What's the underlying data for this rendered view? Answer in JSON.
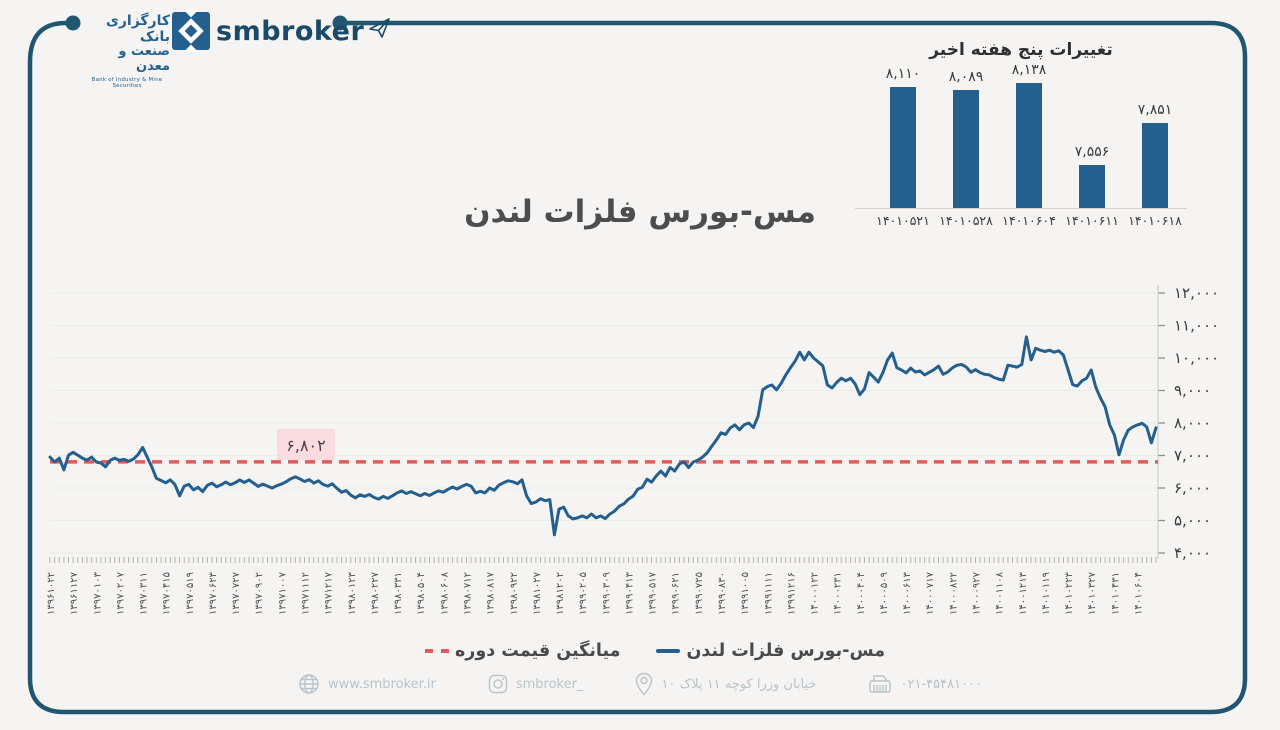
{
  "header": {
    "brand": "smbroker",
    "logo_fa_1": "کارگزاری بانک",
    "logo_fa_2": "صنعت و معدن",
    "logo_en": "Bank of Industry & Mine Securities"
  },
  "main_title": "مس-بورس فلزات لندن",
  "colors": {
    "accent_blue": "#245f8e",
    "frame_blue": "#20566f",
    "dash_red": "#e05b5b",
    "annotation_bg": "#fadbdf",
    "background": "#f5f4f2",
    "muted_footer": "#b9c3ca"
  },
  "legend": {
    "items": [
      {
        "label": "مس-بورس فلزات لندن",
        "marker": "solid-blue-line"
      },
      {
        "label": "میانگین قیمت دوره",
        "marker": "red-dashed-line"
      }
    ]
  },
  "footer": {
    "website": {
      "icon": "globe-icon",
      "label": "www.smbroker.ir"
    },
    "instagram": {
      "icon": "instagram-icon",
      "label": "smbroker_"
    },
    "address": {
      "icon": "location-pin-icon",
      "label": "خیابان وزرا کوچه ۱۱ پلاک ۱۰"
    },
    "phone": {
      "icon": "fax-icon",
      "label": "۰۲۱-۴۵۴۸۱۰۰۰"
    }
  },
  "chart_data": [
    {
      "type": "bar",
      "title": "تغییرات پنج هفته اخیر",
      "categories": [
        "۱۴۰۱۰۵۲۱",
        "۱۴۰۱۰۵۲۸",
        "۱۴۰۱۰۶۰۴",
        "۱۴۰۱۰۶۱۱",
        "۱۴۰۱۰۶۱۸"
      ],
      "values": [
        8110,
        8089,
        8138,
        7556,
        7851
      ],
      "value_labels": [
        "۸,۱۱۰",
        "۸,۰۸۹",
        "۸,۱۳۸",
        "۷,۵۵۶",
        "۷,۸۵۱"
      ],
      "bar_color": "#245f8e",
      "baseline_visible": true
    },
    {
      "type": "line",
      "name": "مس-بورس فلزات لندن",
      "line_color": "#245f8e",
      "ylim": [
        4000,
        12000
      ],
      "yticks": {
        "values": [
          12000,
          11000,
          10000,
          9000,
          8000,
          7000,
          6000,
          5000,
          4000
        ],
        "labels": [
          "۱۲,۰۰۰",
          "۱۱,۰۰۰",
          "۱۰,۰۰۰",
          "۹,۰۰۰",
          "۸,۰۰۰",
          "۷,۰۰۰",
          "۶,۰۰۰",
          "۵,۰۰۰",
          "۴,۰۰۰"
        ]
      },
      "x_tick_every": 5,
      "x_tick_labels": [
        "۱۳۹۶۱۰۲۲",
        "۱۳۹۶۱۱۲۷",
        "۱۳۹۷۰۱۰۳",
        "۱۳۹۷۰۲۰۷",
        "۱۳۹۷۰۳۱۱",
        "۱۳۹۷۰۴۱۵",
        "۱۳۹۷۰۵۱۹",
        "۱۳۹۷۰۶۲۳",
        "۱۳۹۷۰۷۲۷",
        "۱۳۹۷۰۹۰۲",
        "۱۳۹۷۱۰۰۷",
        "۱۳۹۷۱۱۱۲",
        "۱۳۹۷۱۲۱۷",
        "۱۳۹۸۰۱۲۳",
        "۱۳۹۸۰۲۲۷",
        "۱۳۹۸۰۳۳۱",
        "۱۳۹۸۰۵۰۴",
        "۱۳۹۸۰۶۰۸",
        "۱۳۹۸۰۷۱۲",
        "۱۳۹۸۰۸۱۷",
        "۱۳۹۸۰۹۲۲",
        "۱۳۹۸۱۰۲۷",
        "۱۳۹۸۱۲۰۲",
        "۱۳۹۹۰۲۰۵",
        "۱۳۹۹۰۳۰۹",
        "۱۳۹۹۰۴۱۳",
        "۱۳۹۹۰۵۱۷",
        "۱۳۹۹۰۶۲۱",
        "۱۳۹۹۰۷۲۵",
        "۱۳۹۹۰۸۳۰",
        "۱۳۹۹۱۰۰۵",
        "۱۳۹۹۱۱۱۱",
        "۱۳۹۹۱۲۱۶",
        "۱۴۰۰۰۱۲۲",
        "۱۴۰۰۰۲۳۱",
        "۱۴۰۰۰۴۰۴",
        "۱۴۰۰۰۵۰۹",
        "۱۴۰۰۰۶۱۳",
        "۱۴۰۰۰۷۱۷",
        "۱۴۰۰۰۸۲۲",
        "۱۴۰۰۰۹۲۷",
        "۱۴۰۰۱۱۰۸",
        "۱۴۰۰۱۲۱۳",
        "۱۴۰۱۰۱۱۹",
        "۱۴۰۱۰۲۲۳",
        "۱۴۰۱۰۳۲۷",
        "۱۴۰۱۰۴۳۱",
        "۱۴۰۱۰۶۰۴"
      ],
      "series": [
        6950,
        6800,
        6920,
        6560,
        7010,
        7100,
        7010,
        6920,
        6860,
        6950,
        6800,
        6770,
        6650,
        6850,
        6920,
        6850,
        6880,
        6820,
        6890,
        7020,
        7250,
        6950,
        6650,
        6300,
        6230,
        6160,
        6250,
        6110,
        5760,
        6060,
        6110,
        5940,
        6020,
        5890,
        6080,
        6150,
        6040,
        6100,
        6180,
        6100,
        6160,
        6250,
        6170,
        6250,
        6150,
        6050,
        6120,
        6060,
        6000,
        6070,
        6120,
        6190,
        6280,
        6340,
        6280,
        6200,
        6260,
        6150,
        6220,
        6110,
        6060,
        6130,
        5990,
        5870,
        5920,
        5780,
        5700,
        5790,
        5740,
        5800,
        5710,
        5660,
        5740,
        5680,
        5760,
        5850,
        5910,
        5830,
        5890,
        5820,
        5760,
        5830,
        5770,
        5850,
        5910,
        5870,
        5960,
        6030,
        5970,
        6050,
        6110,
        6060,
        5850,
        5900,
        5850,
        6000,
        5930,
        6090,
        6160,
        6220,
        6190,
        6130,
        6250,
        5760,
        5520,
        5570,
        5670,
        5610,
        5640,
        4560,
        5350,
        5410,
        5140,
        5050,
        5080,
        5140,
        5080,
        5200,
        5080,
        5140,
        5060,
        5200,
        5290,
        5440,
        5510,
        5660,
        5750,
        5960,
        6020,
        6270,
        6180,
        6370,
        6520,
        6370,
        6630,
        6520,
        6740,
        6800,
        6630,
        6800,
        6860,
        6950,
        7080,
        7280,
        7480,
        7700,
        7650,
        7850,
        7940,
        7790,
        7940,
        8000,
        7860,
        8200,
        9020,
        9120,
        9170,
        9020,
        9220,
        9480,
        9700,
        9900,
        10180,
        9940,
        10180,
        10000,
        9880,
        9760,
        9170,
        9080,
        9250,
        9380,
        9300,
        9380,
        9200,
        8870,
        9050,
        9550,
        9410,
        9260,
        9560,
        9940,
        10150,
        9700,
        9630,
        9540,
        9690,
        9570,
        9600,
        9480,
        9560,
        9640,
        9750,
        9500,
        9570,
        9700,
        9780,
        9800,
        9720,
        9560,
        9640,
        9550,
        9500,
        9480,
        9400,
        9350,
        9320,
        9780,
        9750,
        9720,
        9800,
        10650,
        9940,
        10300,
        10240,
        10200,
        10240,
        10180,
        10220,
        10090,
        9630,
        9180,
        9140,
        9300,
        9380,
        9630,
        9100,
        8770,
        8500,
        7940,
        7630,
        7020,
        7480,
        7780,
        7880,
        7940,
        7990,
        7880,
        7390,
        7851
      ],
      "average": {
        "value": 6802,
        "label": "۶,۸۰۲"
      }
    }
  ]
}
